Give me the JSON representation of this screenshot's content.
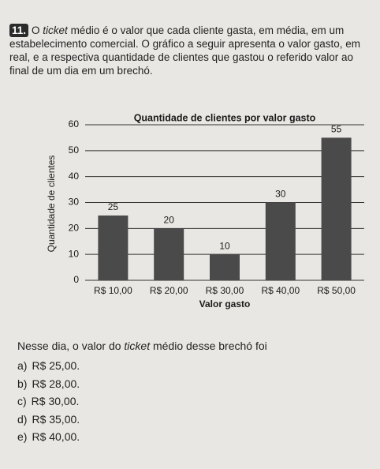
{
  "question": {
    "number": "11.",
    "text": [
      "O ",
      "ticket",
      " médio é o valor que cada cliente gasta, em média, em um estabelecimento comercial. O gráfico a seguir apresenta o valor gasto, em real, e a respectiva quantidade de clientes que gastou o referido valor ao final de um dia em um brechó."
    ],
    "prompt": [
      "Nesse dia, o valor do ",
      "ticket",
      " médio desse brechó foi"
    ],
    "options": [
      {
        "letter": "a)",
        "text": "R$ 25,00."
      },
      {
        "letter": "b)",
        "text": "R$ 28,00."
      },
      {
        "letter": "c)",
        "text": "R$ 30,00."
      },
      {
        "letter": "d)",
        "text": "R$ 35,00."
      },
      {
        "letter": "e)",
        "text": "R$ 40,00."
      }
    ]
  },
  "chart_data": {
    "type": "bar",
    "title": "Quantidade de clientes por valor gasto",
    "x_label": "Valor gasto",
    "y_label": "Quantidade de clientes",
    "categories": [
      "R$ 10,00",
      "R$ 20,00",
      "R$ 30,00",
      "R$ 40,00",
      "R$ 50,00"
    ],
    "values": [
      25,
      20,
      10,
      30,
      55
    ],
    "color": "#4a4a4a",
    "ylim": [
      0,
      60
    ],
    "yticks": [
      0,
      10,
      20,
      30,
      40,
      50,
      60
    ],
    "grid": true
  }
}
